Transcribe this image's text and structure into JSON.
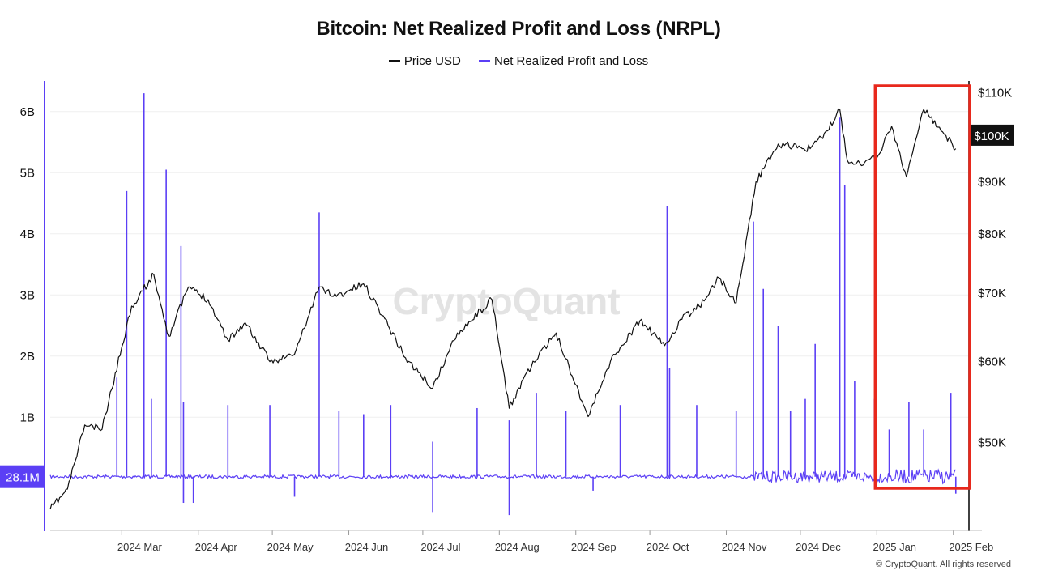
{
  "chart_data": {
    "type": "line",
    "title": "Bitcoin: Net Realized Profit and Loss (NRPL)",
    "series": [
      {
        "name": "Price USD",
        "color": "#111111",
        "axis": "right",
        "x": [
          "2024-02-01",
          "2024-02-08",
          "2024-02-15",
          "2024-02-22",
          "2024-03-01",
          "2024-03-05",
          "2024-03-14",
          "2024-03-20",
          "2024-03-28",
          "2024-04-05",
          "2024-04-13",
          "2024-04-20",
          "2024-04-30",
          "2024-05-10",
          "2024-05-20",
          "2024-05-27",
          "2024-06-07",
          "2024-06-15",
          "2024-06-24",
          "2024-07-05",
          "2024-07-15",
          "2024-07-29",
          "2024-08-05",
          "2024-08-12",
          "2024-08-24",
          "2024-09-06",
          "2024-09-15",
          "2024-09-27",
          "2024-10-07",
          "2024-10-14",
          "2024-10-21",
          "2024-10-29",
          "2024-11-05",
          "2024-11-13",
          "2024-11-22",
          "2024-12-05",
          "2024-12-12",
          "2024-12-17",
          "2024-12-20",
          "2024-12-27",
          "2025-01-01",
          "2025-01-07",
          "2025-01-13",
          "2025-01-20",
          "2025-01-27",
          "2025-02-02"
        ],
        "values": [
          43000,
          45000,
          52000,
          51500,
          62000,
          68000,
          73000,
          63500,
          71000,
          69000,
          63000,
          65500,
          60000,
          61000,
          71000,
          69500,
          71500,
          66500,
          60500,
          56500,
          64000,
          69000,
          54000,
          58500,
          64000,
          53000,
          60000,
          65800,
          62200,
          66000,
          68000,
          72500,
          68500,
          90000,
          98000,
          97000,
          101000,
          106000,
          94500,
          94000,
          95000,
          102000,
          91000,
          106000,
          101000,
          97000
        ]
      },
      {
        "name": "Net Realized Profit and Loss",
        "color": "#5b3ff5",
        "axis": "left",
        "spikes": {
          "x": [
            "2024-02-28",
            "2024-03-03",
            "2024-03-10",
            "2024-03-13",
            "2024-03-19",
            "2024-03-25",
            "2024-03-26",
            "2024-04-13",
            "2024-04-30",
            "2024-05-20",
            "2024-05-28",
            "2024-06-07",
            "2024-06-18",
            "2024-07-05",
            "2024-07-23",
            "2024-08-05",
            "2024-08-16",
            "2024-08-28",
            "2024-09-19",
            "2024-10-08",
            "2024-10-09",
            "2024-10-20",
            "2024-11-05",
            "2024-11-12",
            "2024-11-16",
            "2024-11-22",
            "2024-11-27",
            "2024-12-03",
            "2024-12-07",
            "2024-12-17",
            "2024-12-19",
            "2024-12-23",
            "2024-12-31",
            "2025-01-06",
            "2025-01-14",
            "2025-01-20",
            "2025-01-31"
          ],
          "values": [
            1.65,
            4.7,
            6.3,
            1.3,
            5.05,
            3.8,
            1.25,
            1.2,
            1.2,
            4.35,
            1.1,
            1.05,
            1.2,
            0.6,
            1.15,
            0.95,
            1.4,
            1.1,
            1.2,
            4.45,
            1.8,
            1.2,
            1.1,
            4.2,
            3.1,
            2.5,
            1.1,
            1.3,
            2.2,
            5.9,
            4.8,
            1.6,
            1.3,
            0.8,
            1.25,
            0.8,
            1.4
          ]
        },
        "dips": {
          "x": [
            "2024-03-26",
            "2024-03-30",
            "2024-05-10",
            "2024-07-05",
            "2024-08-05",
            "2024-09-08",
            "2025-02-02"
          ],
          "values": [
            -0.4,
            -0.4,
            -0.3,
            -0.55,
            -0.6,
            -0.2,
            -0.25
          ]
        }
      }
    ],
    "left_axis": {
      "ticks": [
        "6B",
        "5B",
        "4B",
        "3B",
        "2B",
        "1B"
      ],
      "tick_values": [
        6,
        5,
        4,
        3,
        2,
        1
      ],
      "range": [
        -0.85,
        6.5
      ],
      "unit": "B"
    },
    "right_axis": {
      "ticks": [
        "$110K",
        "$90K",
        "$80K",
        "$70K",
        "$60K",
        "$50K"
      ],
      "tick_values": [
        110000,
        90000,
        80000,
        70000,
        60000,
        50000
      ],
      "range": [
        41000,
        113000
      ],
      "scale": "log"
    },
    "x_axis": {
      "ticks": [
        "2024 Mar",
        "2024 Apr",
        "2024 May",
        "2024 Jun",
        "2024 Jul",
        "2024 Aug",
        "2024 Sep",
        "2024 Oct",
        "2024 Nov",
        "2024 Dec",
        "2025 Jan",
        "2025 Feb"
      ],
      "tick_dates": [
        "2024-03-01",
        "2024-04-01",
        "2024-05-01",
        "2024-06-01",
        "2024-07-01",
        "2024-08-01",
        "2024-09-01",
        "2024-10-01",
        "2024-11-01",
        "2024-12-01",
        "2025-01-01",
        "2025-02-01"
      ],
      "range": [
        "2024-02-01",
        "2025-02-07"
      ]
    },
    "current_labels": {
      "price": "$100K",
      "nrpl": "28.1M"
    },
    "highlight": {
      "start": "2025-01-01",
      "end": "2025-02-07",
      "color": "#e8281c"
    },
    "grid": true,
    "legend_position": "top"
  },
  "watermark": "CryptoQuant",
  "copyright": "© CryptoQuant. All rights reserved"
}
